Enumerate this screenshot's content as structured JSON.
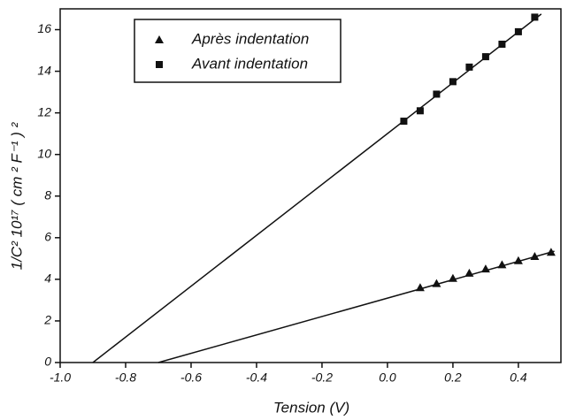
{
  "chart_data": {
    "type": "scatter",
    "xlabel": "Tension (V)",
    "ylabel": "1/C² 10¹⁷ ( cm ² F⁻¹ ) ²",
    "xlim": [
      -1.0,
      0.53
    ],
    "ylim": [
      0,
      17
    ],
    "xticks": [
      {
        "value": -1.0,
        "label": "-1.0"
      },
      -0.8,
      -0.6,
      -0.4,
      -0.2,
      {
        "value": 0.0,
        "label": "0.0"
      },
      0.2,
      0.4
    ],
    "yticks": [
      0,
      2,
      4,
      6,
      8,
      10,
      12,
      14,
      16
    ],
    "series": [
      {
        "name": "Après indentation",
        "marker": "triangle",
        "color": "#111111",
        "x": [
          0.1,
          0.15,
          0.2,
          0.25,
          0.3,
          0.35,
          0.4,
          0.45,
          0.5
        ],
        "values": [
          3.6,
          3.8,
          4.05,
          4.3,
          4.5,
          4.7,
          4.9,
          5.1,
          5.3
        ]
      },
      {
        "name": "Avant indentation",
        "marker": "square",
        "color": "#111111",
        "x": [
          0.05,
          0.1,
          0.15,
          0.2,
          0.25,
          0.3,
          0.35,
          0.4,
          0.45
        ],
        "values": [
          11.6,
          12.1,
          12.9,
          13.5,
          14.2,
          14.7,
          15.3,
          15.9,
          16.6
        ]
      }
    ],
    "fits": [
      {
        "x": [
          -0.7,
          0.51
        ],
        "values": [
          0,
          5.35
        ]
      },
      {
        "x": [
          -0.9,
          0.47
        ],
        "values": [
          0,
          16.75
        ]
      }
    ]
  }
}
